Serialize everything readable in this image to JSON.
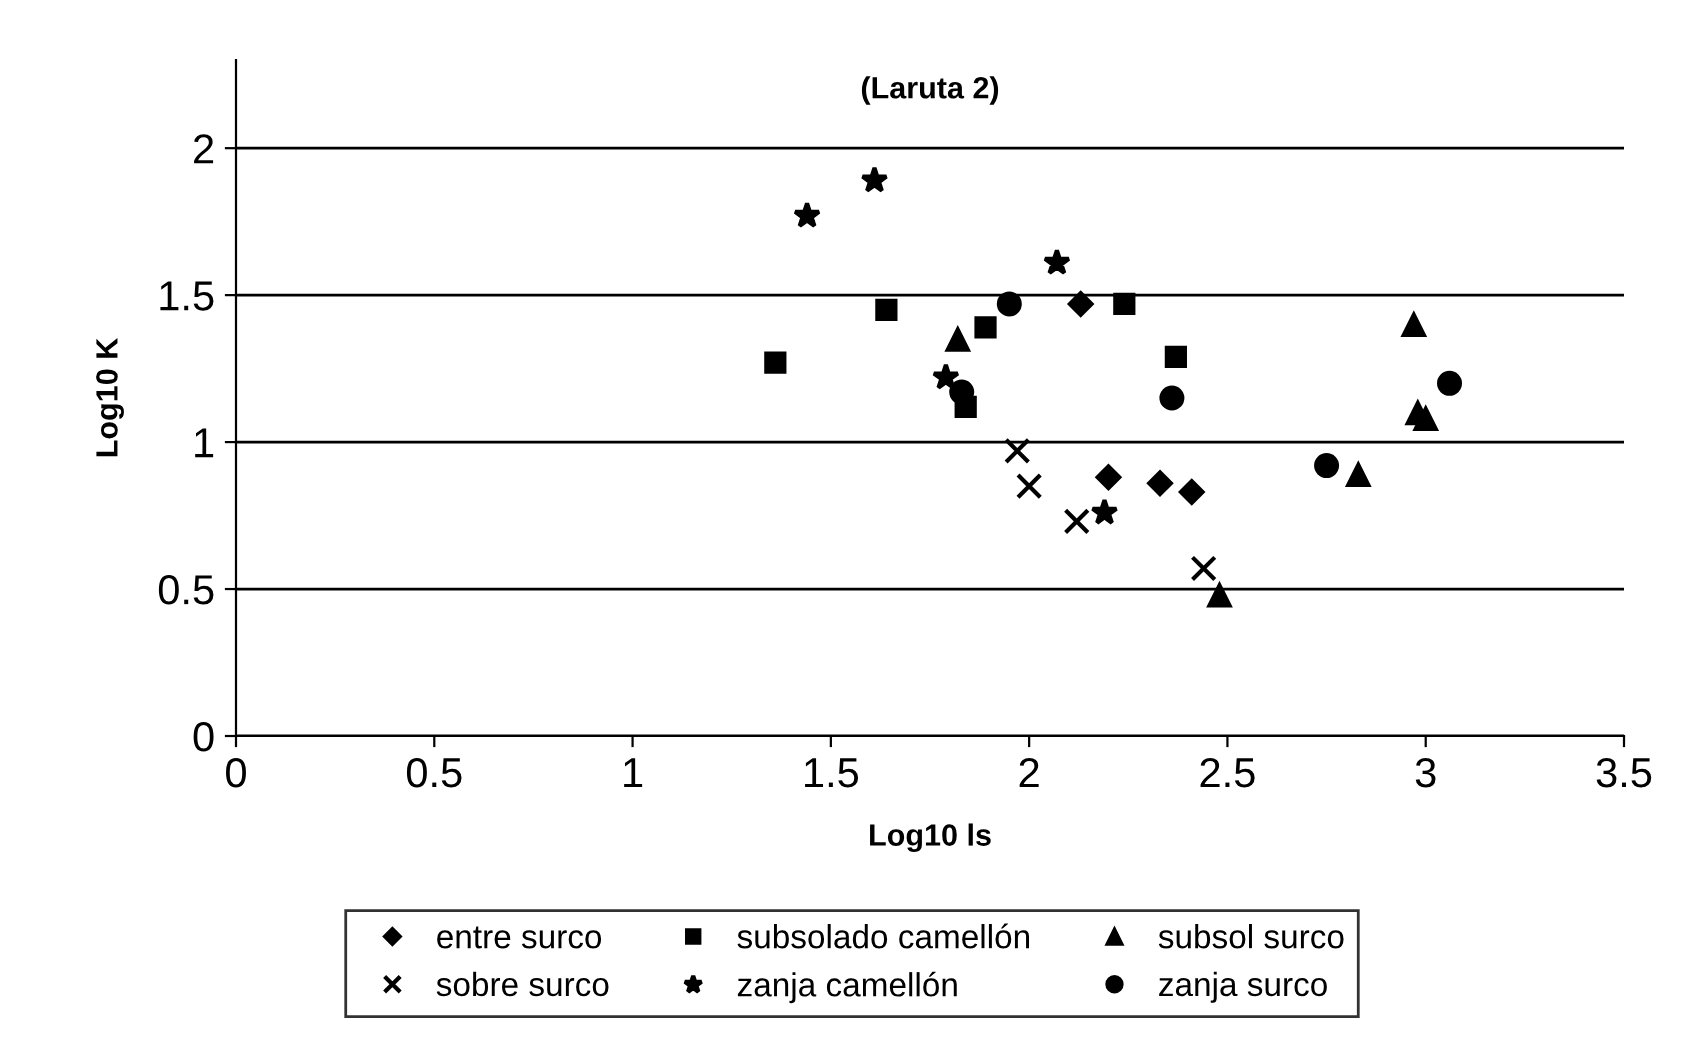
{
  "chart_data": {
    "type": "scatter",
    "title": "(Laruta 2)",
    "xlabel": "Log10 ls",
    "ylabel": "Log10 K",
    "xlim": [
      0,
      3.5
    ],
    "xticks": [
      0,
      0.5,
      1,
      1.5,
      2,
      2.5,
      3,
      3.5
    ],
    "ylim": [
      0,
      2.3
    ],
    "yticks": [
      0,
      0.5,
      1,
      1.5,
      2
    ],
    "grid": "y",
    "legend": "bottom",
    "series": [
      {
        "name": "entre surco",
        "color": "#000000",
        "marker": "diamond",
        "x": [
          2.13,
          2.2,
          2.33,
          2.41
        ],
        "values": [
          1.47,
          0.88,
          0.86,
          0.83
        ]
      },
      {
        "name": "subsolado camellón",
        "color": "#000000",
        "marker": "square",
        "x": [
          1.36,
          1.64,
          1.84,
          1.89,
          2.24,
          2.37
        ],
        "values": [
          1.27,
          1.45,
          1.12,
          1.39,
          1.47,
          1.29
        ]
      },
      {
        "name": "subsol surco",
        "color": "#000000",
        "marker": "triangle",
        "x": [
          1.82,
          2.48,
          2.83,
          2.97,
          2.98,
          3.0
        ],
        "values": [
          1.35,
          0.48,
          0.89,
          1.4,
          1.1,
          1.08
        ]
      },
      {
        "name": "sobre surco",
        "color": "#000000",
        "marker": "cross",
        "x": [
          1.97,
          2.0,
          2.12,
          2.44
        ],
        "values": [
          0.97,
          0.85,
          0.73,
          0.57
        ]
      },
      {
        "name": "zanja camellón",
        "color": "#000000",
        "marker": "star",
        "x": [
          1.44,
          1.61,
          1.79,
          2.07,
          2.19
        ],
        "values": [
          1.77,
          1.89,
          1.22,
          1.61,
          0.76
        ]
      },
      {
        "name": "zanja surco",
        "color": "#000000",
        "marker": "circle",
        "x": [
          1.83,
          1.95,
          2.36,
          2.75,
          3.06
        ],
        "values": [
          1.17,
          1.47,
          1.15,
          0.92,
          1.2
        ]
      }
    ]
  }
}
